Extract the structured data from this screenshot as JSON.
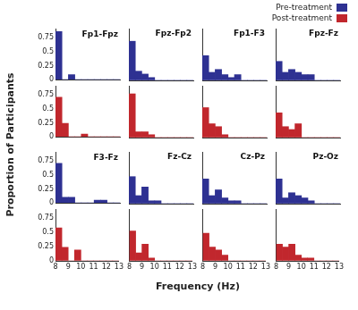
{
  "xlabel": "Frequency (Hz)",
  "ylabel": "Proportion of Participants",
  "legend": "upper right",
  "chart_data": [
    {
      "type": "histogram",
      "title": "Fp1-Fpz",
      "bins": [
        8,
        8.5,
        9,
        9.5,
        10,
        10.5,
        11,
        11.5,
        12,
        12.5,
        13
      ],
      "series": [
        {
          "name": "Pre-treatment",
          "color": "#2e3192",
          "values": [
            0.86,
            0,
            0.09,
            0,
            0,
            0,
            0,
            0,
            0,
            0
          ]
        }
      ],
      "xlim": [
        8,
        13
      ],
      "ylim": [
        0,
        0.9
      ],
      "xticks": [
        8,
        9,
        10,
        11,
        12,
        13
      ],
      "yticks": [
        0,
        0.25,
        0.5,
        0.75
      ],
      "tick_labels": "y"
    },
    {
      "type": "histogram",
      "bins": [
        8,
        8.5,
        9,
        9.5,
        10,
        10.5,
        11,
        11.5,
        12,
        12.5,
        13
      ],
      "series": [
        {
          "name": "Post-treatment",
          "color": "#c1272d",
          "values": [
            0.71,
            0.24,
            0,
            0,
            0.05,
            0,
            0,
            0,
            0,
            0
          ]
        }
      ],
      "xlim": [
        8,
        13
      ],
      "ylim": [
        0,
        0.9
      ],
      "xticks": [
        8,
        9,
        10,
        11,
        12,
        13
      ],
      "yticks": [
        0,
        0.25,
        0.5,
        0.75
      ],
      "tick_labels": "y"
    },
    {
      "type": "histogram",
      "title": "Fpz-Fp2",
      "bins": [
        8,
        8.5,
        9,
        9.5,
        10,
        10.5,
        11,
        11.5,
        12,
        12.5,
        13
      ],
      "series": [
        {
          "name": "Pre-treatment",
          "color": "#2e3192",
          "values": [
            0.68,
            0.16,
            0.11,
            0.05,
            0,
            0,
            0,
            0,
            0,
            0
          ]
        }
      ],
      "xlim": [
        8,
        13
      ],
      "ylim": [
        0,
        0.9
      ],
      "xticks": [
        8,
        9,
        10,
        11,
        12,
        13
      ],
      "yticks": [
        0,
        0.25,
        0.5,
        0.75
      ],
      "tick_labels": false
    },
    {
      "type": "histogram",
      "bins": [
        8,
        8.5,
        9,
        9.5,
        10,
        10.5,
        11,
        11.5,
        12,
        12.5,
        13
      ],
      "series": [
        {
          "name": "Post-treatment",
          "color": "#c1272d",
          "values": [
            0.76,
            0.1,
            0.1,
            0.05,
            0,
            0,
            0,
            0,
            0,
            0
          ]
        }
      ],
      "xlim": [
        8,
        13
      ],
      "ylim": [
        0,
        0.9
      ],
      "xticks": [
        8,
        9,
        10,
        11,
        12,
        13
      ],
      "yticks": [
        0,
        0.25,
        0.5,
        0.75
      ],
      "tick_labels": false
    },
    {
      "type": "histogram",
      "title": "Fp1-F3",
      "bins": [
        8,
        8.5,
        9,
        9.5,
        10,
        10.5,
        11,
        11.5,
        12,
        12.5,
        13
      ],
      "series": [
        {
          "name": "Pre-treatment",
          "color": "#2e3192",
          "values": [
            0.43,
            0.14,
            0.19,
            0.1,
            0.05,
            0.1,
            0,
            0,
            0,
            0
          ]
        }
      ],
      "xlim": [
        8,
        13
      ],
      "ylim": [
        0,
        0.9
      ],
      "xticks": [
        8,
        9,
        10,
        11,
        12,
        13
      ],
      "yticks": [
        0,
        0.25,
        0.5,
        0.75
      ],
      "tick_labels": false
    },
    {
      "type": "histogram",
      "bins": [
        8,
        8.5,
        9,
        9.5,
        10,
        10.5,
        11,
        11.5,
        12,
        12.5,
        13
      ],
      "series": [
        {
          "name": "Post-treatment",
          "color": "#c1272d",
          "values": [
            0.52,
            0.24,
            0.19,
            0.05,
            0,
            0,
            0,
            0,
            0,
            0
          ]
        }
      ],
      "xlim": [
        8,
        13
      ],
      "ylim": [
        0,
        0.9
      ],
      "xticks": [
        8,
        9,
        10,
        11,
        12,
        13
      ],
      "yticks": [
        0,
        0.25,
        0.5,
        0.75
      ],
      "tick_labels": false
    },
    {
      "type": "histogram",
      "title": "Fpz-Fz",
      "bins": [
        8,
        8.5,
        9,
        9.5,
        10,
        10.5,
        11,
        11.5,
        12,
        12.5,
        13
      ],
      "series": [
        {
          "name": "Pre-treatment",
          "color": "#2e3192",
          "values": [
            0.33,
            0.14,
            0.19,
            0.14,
            0.1,
            0.1,
            0,
            0,
            0,
            0
          ]
        }
      ],
      "xlim": [
        8,
        13
      ],
      "ylim": [
        0,
        0.9
      ],
      "xticks": [
        8,
        9,
        10,
        11,
        12,
        13
      ],
      "yticks": [
        0,
        0.25,
        0.5,
        0.75
      ],
      "tick_labels": false
    },
    {
      "type": "histogram",
      "bins": [
        8,
        8.5,
        9,
        9.5,
        10,
        10.5,
        11,
        11.5,
        12,
        12.5,
        13
      ],
      "series": [
        {
          "name": "Post-treatment",
          "color": "#c1272d",
          "values": [
            0.43,
            0.19,
            0.14,
            0.24,
            0,
            0,
            0,
            0,
            0,
            0
          ]
        }
      ],
      "xlim": [
        8,
        13
      ],
      "ylim": [
        0,
        0.9
      ],
      "xticks": [
        8,
        9,
        10,
        11,
        12,
        13
      ],
      "yticks": [
        0,
        0.25,
        0.5,
        0.75
      ],
      "tick_labels": false
    },
    {
      "type": "histogram",
      "title": "F3-Fz",
      "bins": [
        8,
        8.5,
        9,
        9.5,
        10,
        10.5,
        11,
        11.5,
        12,
        12.5,
        13
      ],
      "series": [
        {
          "name": "Pre-treatment",
          "color": "#2e3192",
          "values": [
            0.71,
            0.1,
            0.1,
            0,
            0,
            0,
            0.05,
            0.05,
            0,
            0
          ]
        }
      ],
      "xlim": [
        8,
        13
      ],
      "ylim": [
        0,
        0.9
      ],
      "xticks": [
        8,
        9,
        10,
        11,
        12,
        13
      ],
      "yticks": [
        0,
        0.25,
        0.5,
        0.75
      ],
      "tick_labels": "y"
    },
    {
      "type": "histogram",
      "bins": [
        8,
        8.5,
        9,
        9.5,
        10,
        10.5,
        11,
        11.5,
        12,
        12.5,
        13
      ],
      "series": [
        {
          "name": "Post-treatment",
          "color": "#c1272d",
          "values": [
            0.58,
            0.24,
            0,
            0.19,
            0,
            0,
            0,
            0,
            0,
            0
          ]
        }
      ],
      "xlim": [
        8,
        13
      ],
      "ylim": [
        0,
        0.9
      ],
      "xticks": [
        8,
        9,
        10,
        11,
        12,
        13
      ],
      "yticks": [
        0,
        0.25,
        0.5,
        0.75
      ],
      "tick_labels": true
    },
    {
      "type": "histogram",
      "title": "Fz-Cz",
      "bins": [
        8,
        8.5,
        9,
        9.5,
        10,
        10.5,
        11,
        11.5,
        12,
        12.5,
        13
      ],
      "series": [
        {
          "name": "Pre-treatment",
          "color": "#2e3192",
          "values": [
            0.47,
            0.14,
            0.29,
            0.05,
            0.05,
            0,
            0,
            0,
            0,
            0
          ]
        }
      ],
      "xlim": [
        8,
        13
      ],
      "ylim": [
        0,
        0.9
      ],
      "xticks": [
        8,
        9,
        10,
        11,
        12,
        13
      ],
      "yticks": [
        0,
        0.25,
        0.5,
        0.75
      ],
      "tick_labels": false
    },
    {
      "type": "histogram",
      "bins": [
        8,
        8.5,
        9,
        9.5,
        10,
        10.5,
        11,
        11.5,
        12,
        12.5,
        13
      ],
      "series": [
        {
          "name": "Post-treatment",
          "color": "#c1272d",
          "values": [
            0.52,
            0.14,
            0.29,
            0.05,
            0,
            0,
            0,
            0,
            0,
            0
          ]
        }
      ],
      "xlim": [
        8,
        13
      ],
      "ylim": [
        0,
        0.9
      ],
      "xticks": [
        8,
        9,
        10,
        11,
        12,
        13
      ],
      "yticks": [
        0,
        0.25,
        0.5,
        0.75
      ],
      "tick_labels": "x"
    },
    {
      "type": "histogram",
      "title": "Cz-Pz",
      "bins": [
        8,
        8.5,
        9,
        9.5,
        10,
        10.5,
        11,
        11.5,
        12,
        12.5,
        13
      ],
      "series": [
        {
          "name": "Pre-treatment",
          "color": "#2e3192",
          "values": [
            0.43,
            0.14,
            0.24,
            0.1,
            0.05,
            0.05,
            0,
            0,
            0,
            0
          ]
        }
      ],
      "xlim": [
        8,
        13
      ],
      "ylim": [
        0,
        0.9
      ],
      "xticks": [
        8,
        9,
        10,
        11,
        12,
        13
      ],
      "yticks": [
        0,
        0.25,
        0.5,
        0.75
      ],
      "tick_labels": false
    },
    {
      "type": "histogram",
      "bins": [
        8,
        8.5,
        9,
        9.5,
        10,
        10.5,
        11,
        11.5,
        12,
        12.5,
        13
      ],
      "series": [
        {
          "name": "Post-treatment",
          "color": "#c1272d",
          "values": [
            0.48,
            0.24,
            0.19,
            0.1,
            0,
            0,
            0,
            0,
            0,
            0
          ]
        }
      ],
      "xlim": [
        8,
        13
      ],
      "ylim": [
        0,
        0.9
      ],
      "xticks": [
        8,
        9,
        10,
        11,
        12,
        13
      ],
      "yticks": [
        0,
        0.25,
        0.5,
        0.75
      ],
      "tick_labels": "x"
    },
    {
      "type": "histogram",
      "title": "Pz-Oz",
      "bins": [
        8,
        8.5,
        9,
        9.5,
        10,
        10.5,
        11,
        11.5,
        12,
        12.5,
        13
      ],
      "series": [
        {
          "name": "Pre-treatment",
          "color": "#2e3192",
          "values": [
            0.43,
            0.1,
            0.19,
            0.14,
            0.1,
            0.05,
            0,
            0,
            0,
            0
          ]
        }
      ],
      "xlim": [
        8,
        13
      ],
      "ylim": [
        0,
        0.9
      ],
      "xticks": [
        8,
        9,
        10,
        11,
        12,
        13
      ],
      "yticks": [
        0,
        0.25,
        0.5,
        0.75
      ],
      "tick_labels": false
    },
    {
      "type": "histogram",
      "bins": [
        8,
        8.5,
        9,
        9.5,
        10,
        10.5,
        11,
        11.5,
        12,
        12.5,
        13
      ],
      "series": [
        {
          "name": "Post-treatment",
          "color": "#c1272d",
          "values": [
            0.29,
            0.24,
            0.29,
            0.1,
            0.05,
            0.05,
            0,
            0,
            0,
            0
          ]
        }
      ],
      "xlim": [
        8,
        13
      ],
      "ylim": [
        0,
        0.9
      ],
      "xticks": [
        8,
        9,
        10,
        11,
        12,
        13
      ],
      "yticks": [
        0,
        0.25,
        0.5,
        0.75
      ],
      "tick_labels": "x"
    }
  ]
}
